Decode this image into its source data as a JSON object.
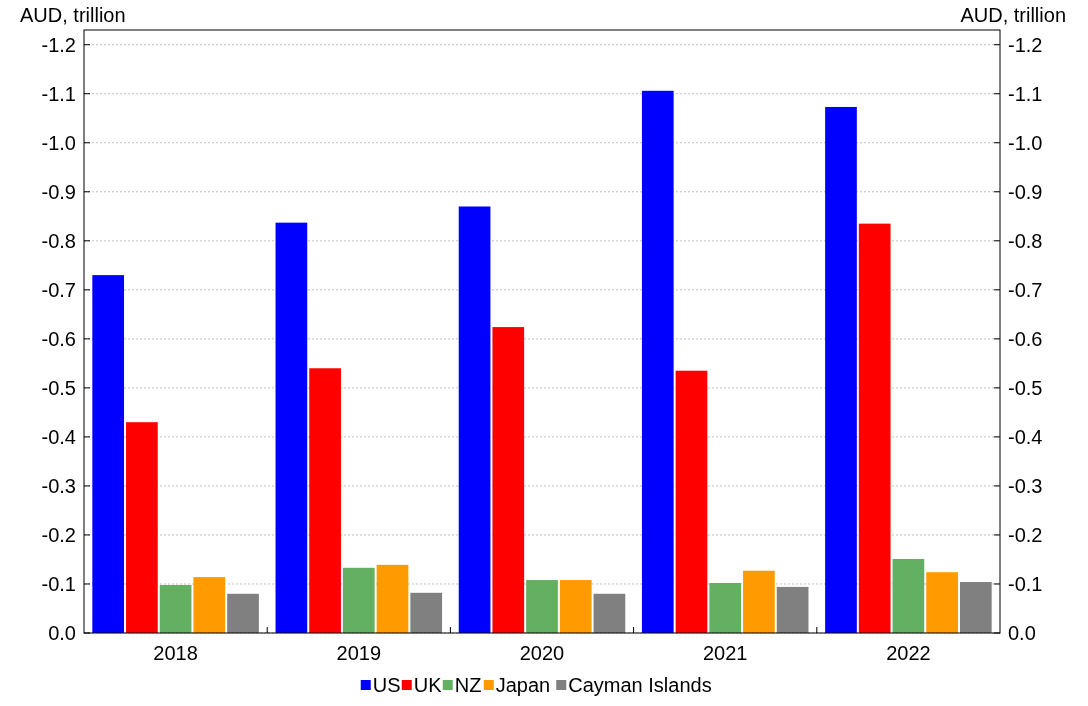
{
  "chart_data": {
    "type": "bar",
    "ylabel": "AUD, trillion",
    "y2label": "AUD, trillion",
    "categories": [
      "2018",
      "2019",
      "2020",
      "2021",
      "2022"
    ],
    "series": [
      {
        "name": "US",
        "color": "#0000ff",
        "values": [
          -0.73,
          -0.837,
          -0.87,
          -1.106,
          -1.073
        ]
      },
      {
        "name": "UK",
        "color": "#ff0000",
        "values": [
          -0.43,
          -0.54,
          -0.624,
          -0.535,
          -0.835
        ]
      },
      {
        "name": "NZ",
        "color": "#63b062",
        "values": [
          -0.098,
          -0.133,
          -0.108,
          -0.102,
          -0.151
        ]
      },
      {
        "name": "Japan",
        "color": "#ff9a00",
        "values": [
          -0.114,
          -0.139,
          -0.108,
          -0.127,
          -0.124
        ]
      },
      {
        "name": "Cayman Islands",
        "color": "#808080",
        "values": [
          -0.08,
          -0.082,
          -0.08,
          -0.094,
          -0.104
        ]
      }
    ],
    "ylim": [
      0,
      -1.23
    ],
    "yticks": [
      {
        "value": 0,
        "label": "0.0"
      },
      -0.1,
      -0.2,
      -0.3,
      -0.4,
      -0.5,
      -0.6,
      -0.7,
      -0.8,
      -0.9,
      {
        "value": -1,
        "label": "-1.0"
      },
      -1.1,
      -1.2
    ],
    "y2lim": [
      0,
      -1.23
    ],
    "y2ticks": [
      {
        "value": 0,
        "label": "0.0"
      },
      -0.1,
      -0.2,
      -0.3,
      -0.4,
      -0.5,
      -0.6,
      -0.7,
      -0.8,
      -0.9,
      {
        "value": -1,
        "label": "-1.0"
      },
      -1.1,
      -1.2
    ],
    "grid": "y",
    "legend": "bottom"
  }
}
